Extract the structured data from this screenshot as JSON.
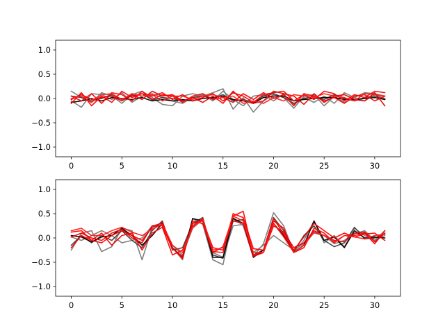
{
  "chart_data": [
    {
      "type": "line",
      "title": "",
      "xlabel": "",
      "ylabel": "",
      "xlim": [
        -1.55,
        32.55
      ],
      "ylim": [
        -1.2,
        1.2
      ],
      "xticks": [
        0,
        5,
        10,
        15,
        20,
        25,
        30
      ],
      "yticks": [
        -1.0,
        -0.5,
        0.0,
        0.5,
        1.0
      ],
      "xtick_labels": [
        "0",
        "5",
        "10",
        "15",
        "20",
        "25",
        "30"
      ],
      "ytick_labels": [
        "−1.0",
        "−0.5",
        "0.0",
        "0.5",
        "1.0"
      ],
      "grid": false,
      "legend": "none",
      "x": [
        0,
        1,
        2,
        3,
        4,
        5,
        6,
        7,
        8,
        9,
        10,
        11,
        12,
        13,
        14,
        15,
        16,
        17,
        18,
        19,
        20,
        21,
        22,
        23,
        24,
        25,
        26,
        27,
        28,
        29,
        30,
        31
      ],
      "series": [
        {
          "color": "#808080",
          "values": [
            0.15,
            0.02,
            -0.08,
            0.12,
            0.05,
            -0.1,
            0.08,
            0.15,
            0.02,
            -0.12,
            -0.15,
            0.05,
            0.1,
            0.05,
            0.12,
            0.2,
            -0.22,
            0.02,
            -0.28,
            -0.05,
            0.08,
            0.02,
            -0.2,
            0.05,
            0.08,
            -0.15,
            0.05,
            -0.08,
            0.02,
            0.12,
            0.1,
            0.05
          ]
        },
        {
          "color": "#808080",
          "values": [
            -0.05,
            -0.18,
            0.1,
            0.08,
            -0.02,
            0.12,
            -0.08,
            0.05,
            0.1,
            0.02,
            -0.05,
            -0.1,
            0.02,
            0.08,
            -0.05,
            0.15,
            -0.02,
            -0.15,
            0.05,
            0.08,
            -0.05,
            0.1,
            -0.12,
            0.02,
            -0.08,
            0.05,
            -0.1,
            0.12,
            0.02,
            -0.05,
            0.08,
            0.0
          ]
        },
        {
          "color": "#404040",
          "values": [
            0.05,
            0.02,
            -0.05,
            0.0,
            0.08,
            -0.02,
            0.05,
            0.1,
            -0.03,
            0.02,
            0.0,
            -0.05,
            0.02,
            0.05,
            0.0,
            0.08,
            -0.05,
            -0.02,
            -0.08,
            0.05,
            0.1,
            0.02,
            -0.1,
            0.0,
            0.05,
            -0.02,
            0.08,
            0.0,
            -0.05,
            0.02,
            0.05,
            -0.02
          ]
        },
        {
          "color": "#000000",
          "values": [
            -0.08,
            -0.05,
            0.0,
            -0.05,
            0.02,
            0.0,
            -0.02,
            0.02,
            -0.05,
            -0.02,
            -0.05,
            -0.02,
            -0.05,
            0.0,
            0.02,
            0.05,
            -0.02,
            -0.05,
            -0.1,
            0.02,
            0.05,
            0.05,
            -0.05,
            -0.02,
            0.0,
            0.02,
            0.02,
            -0.02,
            -0.02,
            0.0,
            0.02,
            -0.02
          ]
        },
        {
          "color": "#ff0000",
          "values": [
            -0.1,
            0.12,
            -0.15,
            0.05,
            -0.08,
            0.15,
            0.02,
            0.1,
            0.05,
            0.12,
            -0.02,
            0.08,
            -0.05,
            0.02,
            0.1,
            -0.05,
            0.12,
            0.05,
            -0.08,
            0.08,
            0.12,
            0.15,
            -0.05,
            0.08,
            -0.02,
            0.15,
            0.1,
            -0.05,
            0.08,
            0.02,
            0.15,
            0.12
          ]
        },
        {
          "color": "#ff0000",
          "values": [
            0.05,
            -0.05,
            0.1,
            -0.1,
            0.12,
            0.08,
            -0.05,
            0.15,
            -0.02,
            0.08,
            0.05,
            -0.08,
            0.05,
            0.1,
            -0.02,
            0.02,
            -0.08,
            0.1,
            -0.02,
            0.12,
            0.0,
            0.08,
            -0.15,
            0.1,
            0.05,
            -0.05,
            0.02,
            -0.1,
            0.05,
            0.08,
            -0.05,
            0.05
          ]
        },
        {
          "color": "#e60000",
          "values": [
            -0.02,
            0.08,
            -0.02,
            0.02,
            0.05,
            -0.05,
            0.08,
            -0.02,
            0.15,
            0.05,
            0.08,
            -0.05,
            0.02,
            -0.08,
            0.05,
            -0.1,
            0.15,
            -0.05,
            -0.1,
            -0.05,
            0.15,
            0.1,
            0.05,
            -0.12,
            0.1,
            -0.08,
            0.05,
            0.08,
            -0.02,
            -0.05,
            0.12,
            -0.15
          ]
        },
        {
          "color": "#ff1a1a",
          "values": [
            0.0,
            0.05,
            -0.08,
            0.08,
            0.1,
            -0.02,
            0.1,
            0.05,
            0.08,
            -0.05,
            0.05,
            0.05,
            -0.02,
            0.05,
            0.08,
            0.02,
            0.05,
            -0.1,
            -0.05,
            -0.1,
            0.02,
            -0.05,
            0.08,
            0.05,
            0.02,
            0.1,
            0.05,
            0.02,
            -0.05,
            0.1,
            0.08,
            0.05
          ]
        }
      ]
    },
    {
      "type": "line",
      "title": "",
      "xlabel": "",
      "ylabel": "",
      "xlim": [
        -1.55,
        32.55
      ],
      "ylim": [
        -1.2,
        1.2
      ],
      "xticks": [
        0,
        5,
        10,
        15,
        20,
        25,
        30
      ],
      "yticks": [
        -1.0,
        -0.5,
        0.0,
        0.5,
        1.0
      ],
      "xtick_labels": [
        "0",
        "5",
        "10",
        "15",
        "20",
        "25",
        "30"
      ],
      "ytick_labels": [
        "−1.0",
        "−0.5",
        "0.0",
        "0.5",
        "1.0"
      ],
      "grid": false,
      "legend": "none",
      "x": [
        0,
        1,
        2,
        3,
        4,
        5,
        6,
        7,
        8,
        9,
        10,
        11,
        12,
        13,
        14,
        15,
        16,
        17,
        18,
        19,
        20,
        21,
        22,
        23,
        24,
        25,
        26,
        27,
        28,
        29,
        30,
        31
      ],
      "series": [
        {
          "color": "#808080",
          "values": [
            -0.25,
            0.1,
            0.15,
            -0.28,
            -0.18,
            0.2,
            0.15,
            -0.45,
            0.22,
            0.28,
            -0.2,
            -0.45,
            0.4,
            0.28,
            -0.45,
            -0.55,
            0.42,
            0.25,
            -0.38,
            -0.12,
            0.52,
            0.25,
            -0.3,
            -0.05,
            0.35,
            -0.1,
            0.05,
            -0.18,
            0.2,
            0.05,
            -0.05,
            0.15
          ]
        },
        {
          "color": "#808080",
          "values": [
            0.02,
            -0.05,
            0.05,
            0.15,
            0.05,
            -0.1,
            -0.05,
            0.0,
            0.25,
            0.3,
            -0.15,
            -0.35,
            0.2,
            0.38,
            -0.3,
            -0.4,
            0.25,
            0.28,
            -0.3,
            -0.15,
            0.05,
            -0.1,
            -0.25,
            -0.12,
            0.1,
            0.05,
            -0.12,
            -0.05,
            0.08,
            0.15,
            -0.05,
            0.05
          ]
        },
        {
          "color": "#404040",
          "values": [
            -0.15,
            0.05,
            -0.1,
            0.05,
            -0.05,
            0.15,
            -0.05,
            -0.2,
            0.15,
            0.35,
            -0.25,
            -0.2,
            0.3,
            0.42,
            -0.35,
            -0.42,
            0.35,
            0.38,
            -0.35,
            -0.25,
            0.42,
            0.15,
            -0.28,
            0.05,
            0.25,
            -0.05,
            -0.18,
            -0.1,
            0.22,
            -0.02,
            0.0,
            0.08
          ]
        },
        {
          "color": "#000000",
          "values": [
            0.05,
            0.02,
            -0.08,
            0.02,
            0.05,
            0.2,
            0.05,
            -0.15,
            0.05,
            0.3,
            -0.2,
            -0.4,
            0.4,
            0.35,
            -0.4,
            -0.4,
            0.4,
            0.3,
            -0.4,
            -0.25,
            0.3,
            0.05,
            -0.3,
            -0.15,
            0.35,
            -0.05,
            0.02,
            -0.2,
            0.15,
            0.0,
            0.02,
            0.0
          ]
        },
        {
          "color": "#ff0000",
          "values": [
            0.12,
            0.15,
            -0.05,
            -0.1,
            0.05,
            0.15,
            0.05,
            -0.05,
            0.22,
            0.32,
            -0.2,
            -0.42,
            0.35,
            0.3,
            -0.3,
            -0.18,
            0.45,
            0.55,
            -0.35,
            -0.3,
            0.35,
            0.2,
            -0.3,
            -0.2,
            0.2,
            0.1,
            -0.1,
            0.05,
            0.05,
            0.1,
            -0.12,
            0.15
          ]
        },
        {
          "color": "#ff0000",
          "values": [
            -0.2,
            0.05,
            -0.05,
            0.1,
            -0.15,
            0.05,
            0.1,
            -0.25,
            0.1,
            0.22,
            -0.35,
            -0.25,
            0.25,
            0.4,
            -0.28,
            -0.3,
            0.5,
            0.42,
            -0.22,
            -0.25,
            0.4,
            0.08,
            -0.25,
            0.02,
            0.3,
            0.15,
            0.0,
            0.1,
            0.02,
            0.08,
            0.1,
            -0.05
          ]
        },
        {
          "color": "#e60000",
          "values": [
            0.02,
            0.1,
            0.0,
            -0.05,
            0.1,
            0.18,
            0.0,
            -0.1,
            0.25,
            0.25,
            -0.22,
            -0.38,
            0.3,
            0.35,
            -0.2,
            -0.25,
            0.35,
            0.3,
            -0.38,
            -0.3,
            0.25,
            0.12,
            -0.2,
            -0.1,
            0.15,
            0.05,
            -0.05,
            -0.08,
            0.1,
            0.12,
            -0.08,
            0.1
          ]
        },
        {
          "color": "#ff1a1a",
          "values": [
            0.15,
            0.2,
            0.05,
            0.05,
            0.15,
            0.22,
            0.12,
            0.05,
            0.18,
            0.28,
            -0.15,
            -0.3,
            0.22,
            0.38,
            -0.25,
            -0.2,
            0.45,
            0.35,
            -0.3,
            -0.3,
            0.3,
            0.02,
            -0.3,
            -0.15,
            0.12,
            0.05,
            -0.08,
            0.05,
            0.02,
            -0.02,
            0.05,
            0.08
          ]
        }
      ]
    }
  ]
}
